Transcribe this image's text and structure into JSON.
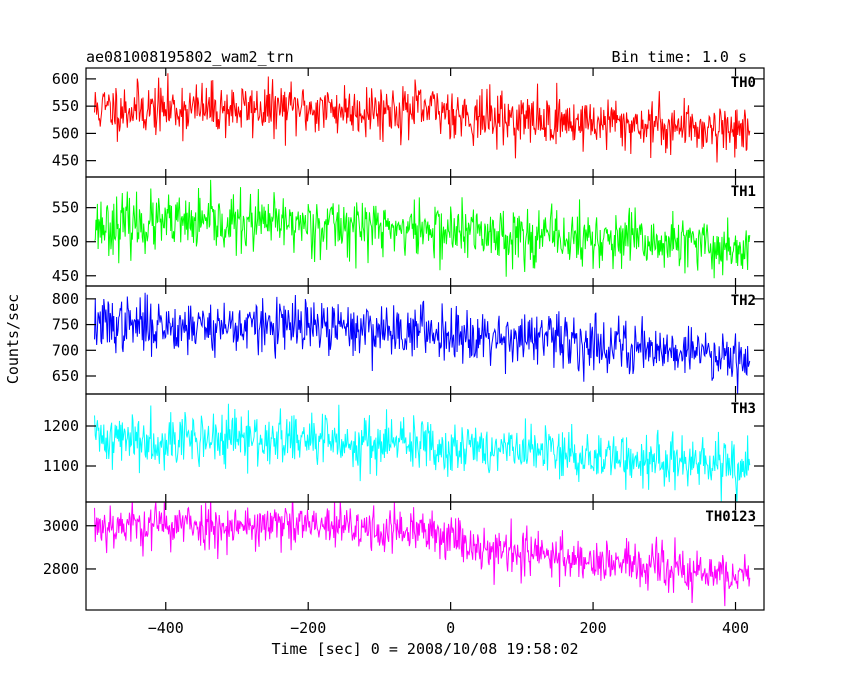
{
  "header": {
    "title": "ae081008195802_wam2_trn",
    "bin_time": "Bin time: 1.0 s"
  },
  "chart_data": {
    "type": "line",
    "xlabel": "Time [sec] 0 = 2008/10/08 19:58:02",
    "ylabel": "Counts/sec",
    "xlim": [
      -512,
      440
    ],
    "x_start": -500,
    "x_end": 420,
    "x_step": 1,
    "x_ticks": [
      -400,
      -200,
      0,
      200,
      400
    ],
    "x_tick_labels": [
      "−400",
      "−200",
      "0",
      "200",
      "400"
    ],
    "panels": [
      {
        "name": "TH0",
        "color": "#ff0000",
        "ylim": [
          420,
          620
        ],
        "y_ticks": [
          450,
          500,
          550,
          600
        ],
        "y_tick_labels": [
          "450",
          "500",
          "550",
          "600"
        ],
        "trend": [
          [
            -500,
            545
          ],
          [
            -200,
            545
          ],
          [
            0,
            542
          ],
          [
            30,
            530
          ],
          [
            420,
            507
          ]
        ],
        "noise": 24,
        "seed": 11
      },
      {
        "name": "TH1",
        "color": "#00ff00",
        "ylim": [
          435,
          595
        ],
        "y_ticks": [
          450,
          500,
          550
        ],
        "y_tick_labels": [
          "450",
          "500",
          "550"
        ],
        "trend": [
          [
            -500,
            525
          ],
          [
            -200,
            527
          ],
          [
            0,
            515
          ],
          [
            420,
            490
          ]
        ],
        "noise": 21,
        "seed": 23
      },
      {
        "name": "TH2",
        "color": "#0000ff",
        "ylim": [
          615,
          825
        ],
        "y_ticks": [
          650,
          700,
          750,
          800
        ],
        "y_tick_labels": [
          "650",
          "700",
          "750",
          "800"
        ],
        "trend": [
          [
            -500,
            750
          ],
          [
            -200,
            745
          ],
          [
            0,
            735
          ],
          [
            420,
            690
          ]
        ],
        "noise": 26,
        "seed": 37
      },
      {
        "name": "TH3",
        "color": "#00ffff",
        "ylim": [
          1010,
          1280
        ],
        "y_ticks": [
          1100,
          1200
        ],
        "y_tick_labels": [
          "1100",
          "1200"
        ],
        "trend": [
          [
            -500,
            1170
          ],
          [
            -200,
            1165
          ],
          [
            0,
            1150
          ],
          [
            420,
            1095
          ]
        ],
        "noise": 34,
        "seed": 41
      },
      {
        "name": "TH0123",
        "color": "#ff00ff",
        "ylim": [
          2610,
          3110
        ],
        "y_ticks": [
          2800,
          3000
        ],
        "y_tick_labels": [
          "2800",
          "3000"
        ],
        "trend": [
          [
            -500,
            3005
          ],
          [
            -200,
            3000
          ],
          [
            0,
            2960
          ],
          [
            40,
            2900
          ],
          [
            420,
            2755
          ]
        ],
        "noise": 55,
        "seed": 53
      }
    ]
  }
}
